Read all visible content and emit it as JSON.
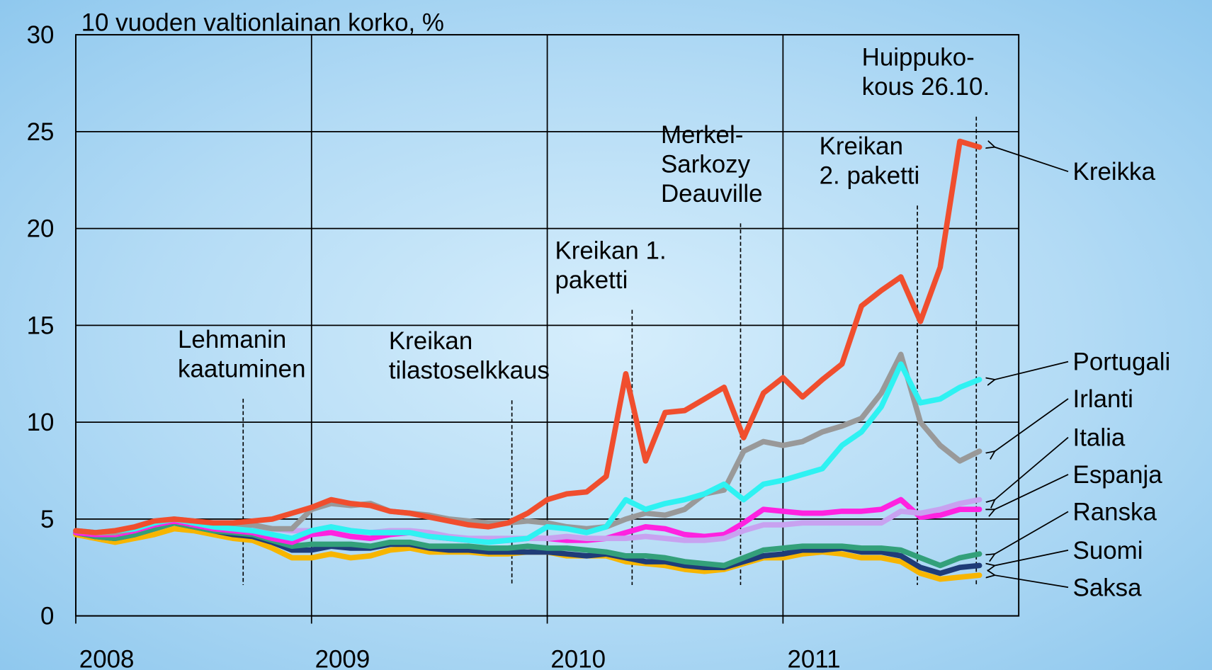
{
  "chart_data": {
    "type": "line",
    "title": "10 vuoden valtionlainan korko, %",
    "xlim": [
      2008,
      2012
    ],
    "xticks": [
      2008,
      2009,
      2010,
      2011
    ],
    "ylim": [
      0,
      30
    ],
    "yticks": [
      0,
      5,
      10,
      15,
      20,
      25,
      30
    ],
    "grid": true,
    "x": [
      2008,
      2008.083,
      2008.167,
      2008.25,
      2008.333,
      2008.417,
      2008.5,
      2008.583,
      2008.667,
      2008.75,
      2008.833,
      2008.917,
      2009,
      2009.083,
      2009.167,
      2009.25,
      2009.333,
      2009.417,
      2009.5,
      2009.583,
      2009.667,
      2009.75,
      2009.833,
      2009.917,
      2010,
      2010.083,
      2010.167,
      2010.25,
      2010.333,
      2010.417,
      2010.5,
      2010.583,
      2010.667,
      2010.75,
      2010.833,
      2010.917,
      2011,
      2011.083,
      2011.167,
      2011.25,
      2011.333,
      2011.417,
      2011.5,
      2011.583,
      2011.667,
      2011.75,
      2011.833
    ],
    "series": [
      {
        "name": "Kreikka",
        "color": "#f04e2e",
        "values": [
          4.4,
          4.3,
          4.4,
          4.6,
          4.9,
          5.0,
          4.9,
          4.8,
          4.8,
          4.9,
          5.0,
          5.3,
          5.6,
          6.0,
          5.8,
          5.7,
          5.4,
          5.3,
          5.1,
          4.9,
          4.7,
          4.6,
          4.8,
          5.3,
          6.0,
          6.3,
          6.4,
          7.2,
          12.5,
          8.0,
          10.5,
          10.6,
          11.2,
          11.8,
          9.2,
          11.5,
          12.3,
          11.3,
          12.2,
          13.0,
          16.0,
          16.8,
          17.5,
          15.2,
          18.0,
          24.5,
          24.2
        ]
      },
      {
        "name": "Portugali",
        "color": "#2ef2f2",
        "values": [
          4.4,
          4.3,
          4.4,
          4.5,
          4.8,
          5.0,
          4.8,
          4.6,
          4.5,
          4.4,
          4.2,
          4.0,
          4.4,
          4.6,
          4.4,
          4.3,
          4.3,
          4.3,
          4.1,
          4.0,
          3.9,
          3.8,
          3.9,
          4.0,
          4.6,
          4.5,
          4.3,
          4.6,
          6.0,
          5.5,
          5.8,
          6.0,
          6.3,
          6.8,
          6.0,
          6.8,
          7.0,
          7.3,
          7.6,
          8.8,
          9.5,
          10.8,
          13.0,
          11.0,
          11.2,
          11.8,
          12.2
        ]
      },
      {
        "name": "Irlanti",
        "color": "#999999",
        "values": [
          4.4,
          4.3,
          4.3,
          4.5,
          4.8,
          5.0,
          4.9,
          4.7,
          4.6,
          4.7,
          4.5,
          4.5,
          5.5,
          5.8,
          5.7,
          5.8,
          5.4,
          5.3,
          5.2,
          5.0,
          4.9,
          4.8,
          4.8,
          4.9,
          4.8,
          4.6,
          4.5,
          4.6,
          5.0,
          5.3,
          5.2,
          5.5,
          6.3,
          6.5,
          8.5,
          9.0,
          8.8,
          9.0,
          9.5,
          9.8,
          10.2,
          11.5,
          13.5,
          10.0,
          8.8,
          8.0,
          8.5
        ]
      },
      {
        "name": "Italia",
        "color": "#c8a2f0",
        "values": [
          4.4,
          4.3,
          4.3,
          4.5,
          4.8,
          5.0,
          4.8,
          4.6,
          4.6,
          4.6,
          4.5,
          4.4,
          4.4,
          4.6,
          4.4,
          4.3,
          4.4,
          4.4,
          4.3,
          4.1,
          4.0,
          4.0,
          4.0,
          4.0,
          4.0,
          4.1,
          4.0,
          4.0,
          4.0,
          4.1,
          4.0,
          3.9,
          3.9,
          4.0,
          4.4,
          4.7,
          4.7,
          4.8,
          4.8,
          4.8,
          4.8,
          4.8,
          5.4,
          5.3,
          5.5,
          5.8,
          6.0
        ]
      },
      {
        "name": "Espanja",
        "color": "#ff22e0",
        "values": [
          4.3,
          4.2,
          4.2,
          4.4,
          4.7,
          4.9,
          4.7,
          4.5,
          4.4,
          4.3,
          4.0,
          3.8,
          4.2,
          4.3,
          4.1,
          4.0,
          4.2,
          4.3,
          4.1,
          4.0,
          3.9,
          3.9,
          3.9,
          4.0,
          4.0,
          3.9,
          3.9,
          4.0,
          4.3,
          4.6,
          4.5,
          4.2,
          4.1,
          4.2,
          4.8,
          5.5,
          5.4,
          5.3,
          5.3,
          5.4,
          5.4,
          5.5,
          6.0,
          5.1,
          5.2,
          5.5,
          5.5
        ]
      },
      {
        "name": "Ranska",
        "color": "#33a07a",
        "values": [
          4.3,
          4.1,
          4.0,
          4.2,
          4.5,
          4.8,
          4.6,
          4.4,
          4.3,
          4.2,
          3.9,
          3.6,
          3.7,
          3.7,
          3.7,
          3.6,
          3.8,
          3.8,
          3.6,
          3.6,
          3.6,
          3.5,
          3.5,
          3.6,
          3.5,
          3.5,
          3.4,
          3.3,
          3.1,
          3.1,
          3.0,
          2.8,
          2.7,
          2.6,
          3.0,
          3.4,
          3.5,
          3.6,
          3.6,
          3.6,
          3.5,
          3.5,
          3.4,
          3.0,
          2.6,
          3.0,
          3.2
        ]
      },
      {
        "name": "Suomi",
        "color": "#1f3c78",
        "values": [
          4.3,
          4.1,
          4.0,
          4.2,
          4.5,
          4.8,
          4.6,
          4.4,
          4.2,
          4.1,
          3.8,
          3.4,
          3.4,
          3.6,
          3.5,
          3.5,
          3.7,
          3.7,
          3.5,
          3.4,
          3.4,
          3.3,
          3.3,
          3.3,
          3.3,
          3.2,
          3.1,
          3.2,
          3.0,
          2.8,
          2.8,
          2.6,
          2.5,
          2.5,
          2.8,
          3.1,
          3.2,
          3.4,
          3.4,
          3.5,
          3.3,
          3.3,
          3.1,
          2.5,
          2.2,
          2.5,
          2.6
        ]
      },
      {
        "name": "Saksa",
        "color": "#f7b500",
        "values": [
          4.2,
          4.0,
          3.8,
          4.0,
          4.2,
          4.5,
          4.4,
          4.2,
          4.0,
          3.9,
          3.5,
          3.0,
          3.0,
          3.2,
          3.0,
          3.1,
          3.4,
          3.5,
          3.3,
          3.3,
          3.3,
          3.2,
          3.2,
          3.3,
          3.3,
          3.1,
          3.1,
          3.1,
          2.8,
          2.7,
          2.6,
          2.4,
          2.3,
          2.4,
          2.7,
          3.0,
          3.0,
          3.2,
          3.3,
          3.2,
          3.0,
          3.0,
          2.8,
          2.2,
          1.9,
          2.0,
          2.1
        ]
      }
    ],
    "annotations": [
      {
        "lines": [
          "Lehmanin",
          "kaatuminen"
        ],
        "x": 2008.71
      },
      {
        "lines": [
          "Kreikan",
          "tilastoselkkaus"
        ],
        "x": 2009.85
      },
      {
        "lines": [
          "Kreikan 1.",
          "paketti"
        ],
        "x": 2010.36
      },
      {
        "lines": [
          "Merkel-",
          "Sarkozy",
          "Deauville"
        ],
        "x": 2010.82
      },
      {
        "lines": [
          "Kreikan",
          "2. paketti"
        ],
        "x": 2011.57
      },
      {
        "lines": [
          "Huippuko-",
          "kous 26.10."
        ],
        "x": 2011.82
      }
    ]
  }
}
